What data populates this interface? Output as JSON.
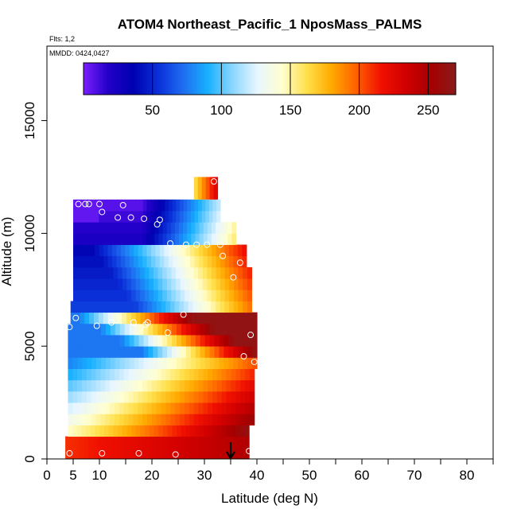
{
  "chart_data": {
    "type": "heatmap",
    "title": "ATOM4 Northeast_Pacific_1 NposMass_PALMS",
    "flights_label": "Flts: 1,2",
    "dates_label": "MMDD: 0424,0427",
    "xlabel": "Latitude (deg N)",
    "ylabel": "Altitude (m)",
    "xlim": [
      0,
      85
    ],
    "ylim": [
      0,
      18300
    ],
    "x_ticks": [
      0,
      5,
      10,
      20,
      30,
      40,
      50,
      60,
      70,
      80
    ],
    "x_minor_ticks": [
      15,
      25,
      35,
      45,
      55,
      65,
      75,
      85
    ],
    "y_ticks": [
      0,
      5000,
      10000,
      15000
    ],
    "colorbar": {
      "range": [
        0,
        270
      ],
      "ticks": [
        50,
        100,
        150,
        200,
        250
      ],
      "colors": [
        "#7b1fff",
        "#2200c8",
        "#0000b0",
        "#0a2fd8",
        "#1e6cf0",
        "#17b0ff",
        "#8ad6ff",
        "#e8f6ff",
        "#ffffd0",
        "#ffe04a",
        "#ffaa00",
        "#ff6000",
        "#f01000",
        "#d00000",
        "#a50000",
        "#8b1a1a"
      ]
    },
    "heatmap": {
      "x_range": [
        4,
        40
      ],
      "y_top": 11500,
      "columns": 50,
      "band_height_m": 500
    },
    "marker_latitude": 35,
    "sample_points": [
      {
        "x": 4.3,
        "y": 250
      },
      {
        "x": 10.5,
        "y": 250
      },
      {
        "x": 17.5,
        "y": 250
      },
      {
        "x": 24.5,
        "y": 200
      },
      {
        "x": 38.5,
        "y": 350
      },
      {
        "x": 4.3,
        "y": 5850
      },
      {
        "x": 5.5,
        "y": 6250
      },
      {
        "x": 9.5,
        "y": 5900
      },
      {
        "x": 12.3,
        "y": 6050
      },
      {
        "x": 16.5,
        "y": 6050
      },
      {
        "x": 18.8,
        "y": 5950
      },
      {
        "x": 19.2,
        "y": 6050
      },
      {
        "x": 26.0,
        "y": 6400
      },
      {
        "x": 23.0,
        "y": 5600
      },
      {
        "x": 38.8,
        "y": 5500
      },
      {
        "x": 39.5,
        "y": 4300
      },
      {
        "x": 37.5,
        "y": 4550
      },
      {
        "x": 35.5,
        "y": 8050
      },
      {
        "x": 36.8,
        "y": 8700
      },
      {
        "x": 33.5,
        "y": 9000
      },
      {
        "x": 33.0,
        "y": 9500
      },
      {
        "x": 30.5,
        "y": 9500
      },
      {
        "x": 28.5,
        "y": 9500
      },
      {
        "x": 26.5,
        "y": 9500
      },
      {
        "x": 23.5,
        "y": 9550
      },
      {
        "x": 21.0,
        "y": 10400
      },
      {
        "x": 21.5,
        "y": 10600
      },
      {
        "x": 18.5,
        "y": 10650
      },
      {
        "x": 16.0,
        "y": 10700
      },
      {
        "x": 13.5,
        "y": 10700
      },
      {
        "x": 10.5,
        "y": 10950
      },
      {
        "x": 6.0,
        "y": 11300
      },
      {
        "x": 7.3,
        "y": 11300
      },
      {
        "x": 8.0,
        "y": 11300
      },
      {
        "x": 10.0,
        "y": 11300
      },
      {
        "x": 14.5,
        "y": 11250
      },
      {
        "x": 31.8,
        "y": 12300
      }
    ]
  }
}
